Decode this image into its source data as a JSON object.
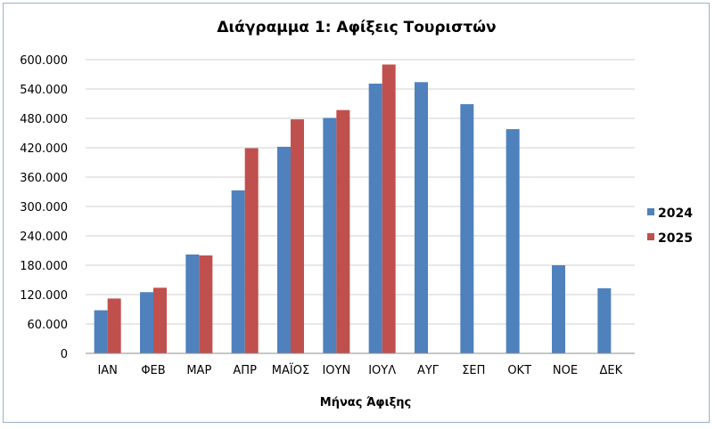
{
  "chart_data": {
    "type": "bar",
    "title": "Διάγραμμα 1: Αφίξεις Τουριστών",
    "xlabel": "Μήνας Άφιξης",
    "ylabel": "",
    "categories": [
      "ΙΑΝ",
      "ΦΕΒ",
      "ΜΑΡ",
      "ΑΠΡ",
      "ΜΑΪΟΣ",
      "ΙΟΥΝ",
      "ΙΟΥΛ",
      "ΑΥΓ",
      "ΣΕΠ",
      "ΟΚΤ",
      "ΝΟΕ",
      "ΔΕΚ"
    ],
    "series": [
      {
        "name": "2024",
        "color": "#4f81bd",
        "values": [
          88000,
          125000,
          202000,
          333000,
          422000,
          481000,
          551000,
          554000,
          509000,
          458000,
          180000,
          133000
        ]
      },
      {
        "name": "2025",
        "color": "#c0504d",
        "values": [
          112000,
          134000,
          200000,
          419000,
          478000,
          497000,
          590000,
          null,
          null,
          null,
          null,
          null
        ]
      }
    ],
    "ylim": [
      0,
      600000
    ],
    "yticks": [
      0,
      60000,
      120000,
      180000,
      240000,
      300000,
      360000,
      420000,
      480000,
      540000,
      600000
    ],
    "ytick_labels": [
      "0",
      "60.000",
      "120.000",
      "180.000",
      "240.000",
      "300.000",
      "360.000",
      "420.000",
      "480.000",
      "540.000",
      "600.000"
    ],
    "grid": true,
    "legend_position": "right"
  }
}
